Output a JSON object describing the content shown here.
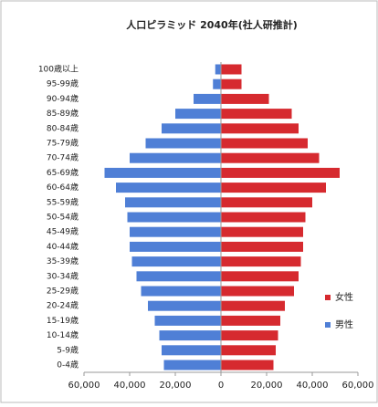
{
  "chart_data": {
    "type": "bar",
    "orientation": "horizontal",
    "stacked": "diverging",
    "title": "人口ピラミッド 2040年(社人研推計)",
    "categories": [
      "0-4歳",
      "5-9歳",
      "10-14歳",
      "15-19歳",
      "20-24歳",
      "25-29歳",
      "30-34歳",
      "35-39歳",
      "40-44歳",
      "45-49歳",
      "50-54歳",
      "55-59歳",
      "60-64歳",
      "65-69歳",
      "70-74歳",
      "75-79歳",
      "80-84歳",
      "85-89歳",
      "90-94歳",
      "95-99歳",
      "100歳以上"
    ],
    "series": [
      {
        "name": "女性",
        "color": "#d62a2f",
        "values": [
          23000,
          24000,
          25000,
          26000,
          28000,
          32000,
          34000,
          35000,
          36000,
          36000,
          37000,
          40000,
          46000,
          52000,
          43000,
          38000,
          34000,
          31000,
          21000,
          9000,
          9000
        ]
      },
      {
        "name": "男性",
        "color": "#4f7fd6",
        "values": [
          -25000,
          -26000,
          -27000,
          -29000,
          -32000,
          -35000,
          -37000,
          -39000,
          -40000,
          -40000,
          -41000,
          -42000,
          -46000,
          -51000,
          -40000,
          -33000,
          -26000,
          -20000,
          -12000,
          -3500,
          -2500
        ]
      }
    ],
    "xlim": [
      -60000,
      60000
    ],
    "xticks": [
      {
        "value": -60000,
        "label": "60,000"
      },
      {
        "value": -40000,
        "label": "40,000"
      },
      {
        "value": -20000,
        "label": "20,000"
      },
      0,
      {
        "value": 20000,
        "label": "20,000"
      },
      {
        "value": 40000,
        "label": "40,000"
      },
      {
        "value": 60000,
        "label": "60,000"
      }
    ],
    "legend": "right"
  }
}
